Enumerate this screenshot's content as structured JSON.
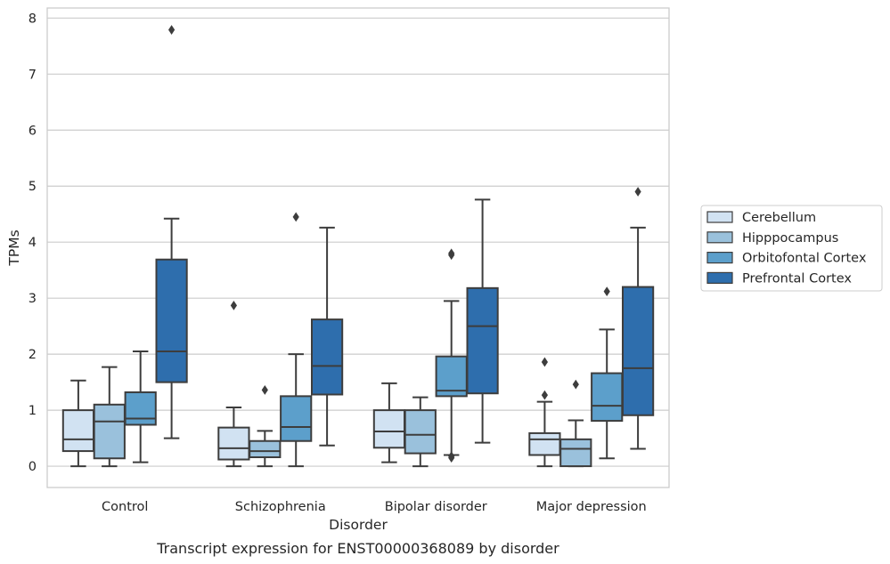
{
  "chart_data": {
    "type": "box",
    "xlabel": "Disorder",
    "ylabel": "TPMs",
    "caption": "Transcript expression for ENST00000368089 by disorder",
    "ylim": [
      -0.38,
      8.18
    ],
    "yticks": [
      0,
      1,
      2,
      3,
      4,
      5,
      6,
      7,
      8
    ],
    "grid": "horizontal",
    "legend_position": "right",
    "categories": [
      "Control",
      "Schizophrenia",
      "Bipolar disorder",
      "Major depression"
    ],
    "series": [
      {
        "name": "Cerebellum",
        "color": "#d1e2f2",
        "boxes": [
          {
            "whisker_low": 0.0,
            "q1": 0.27,
            "median": 0.48,
            "q3": 1.0,
            "whisker_high": 1.53,
            "outliers": []
          },
          {
            "whisker_low": 0.0,
            "q1": 0.12,
            "median": 0.32,
            "q3": 0.69,
            "whisker_high": 1.05,
            "outliers": [
              2.87
            ]
          },
          {
            "whisker_low": 0.07,
            "q1": 0.33,
            "median": 0.62,
            "q3": 1.0,
            "whisker_high": 1.48,
            "outliers": []
          },
          {
            "whisker_low": 0.0,
            "q1": 0.2,
            "median": 0.48,
            "q3": 0.59,
            "whisker_high": 1.15,
            "outliers": [
              1.86,
              1.27
            ]
          }
        ]
      },
      {
        "name": "Hipppocampus",
        "color": "#9ac1dc",
        "boxes": [
          {
            "whisker_low": 0.0,
            "q1": 0.14,
            "median": 0.8,
            "q3": 1.1,
            "whisker_high": 1.77,
            "outliers": []
          },
          {
            "whisker_low": 0.0,
            "q1": 0.16,
            "median": 0.27,
            "q3": 0.45,
            "whisker_high": 0.63,
            "outliers": [
              1.36
            ]
          },
          {
            "whisker_low": 0.0,
            "q1": 0.23,
            "median": 0.56,
            "q3": 1.0,
            "whisker_high": 1.23,
            "outliers": []
          },
          {
            "whisker_low": 0.0,
            "q1": 0.0,
            "median": 0.31,
            "q3": 0.48,
            "whisker_high": 0.82,
            "outliers": [
              1.46
            ]
          }
        ]
      },
      {
        "name": "Orbitofontal Cortex",
        "color": "#5c9fcb",
        "boxes": [
          {
            "whisker_low": 0.07,
            "q1": 0.74,
            "median": 0.85,
            "q3": 1.32,
            "whisker_high": 2.05,
            "outliers": []
          },
          {
            "whisker_low": 0.0,
            "q1": 0.45,
            "median": 0.7,
            "q3": 1.25,
            "whisker_high": 2.0,
            "outliers": [
              4.45
            ]
          },
          {
            "whisker_low": 0.2,
            "q1": 1.25,
            "median": 1.35,
            "q3": 1.96,
            "whisker_high": 2.95,
            "outliers": [
              3.8,
              3.77,
              0.18,
              0.15
            ]
          },
          {
            "whisker_low": 0.14,
            "q1": 0.81,
            "median": 1.08,
            "q3": 1.66,
            "whisker_high": 2.44,
            "outliers": [
              3.12
            ]
          }
        ]
      },
      {
        "name": "Prefrontal Cortex",
        "color": "#2e6ead",
        "boxes": [
          {
            "whisker_low": 0.5,
            "q1": 1.5,
            "median": 2.05,
            "q3": 3.69,
            "whisker_high": 4.42,
            "outliers": [
              7.79
            ]
          },
          {
            "whisker_low": 0.37,
            "q1": 1.28,
            "median": 1.79,
            "q3": 2.62,
            "whisker_high": 4.26,
            "outliers": []
          },
          {
            "whisker_low": 0.42,
            "q1": 1.3,
            "median": 2.5,
            "q3": 3.18,
            "whisker_high": 4.76,
            "outliers": []
          },
          {
            "whisker_low": 0.31,
            "q1": 0.91,
            "median": 1.75,
            "q3": 3.2,
            "whisker_high": 4.26,
            "outliers": [
              4.9
            ]
          }
        ]
      }
    ]
  }
}
